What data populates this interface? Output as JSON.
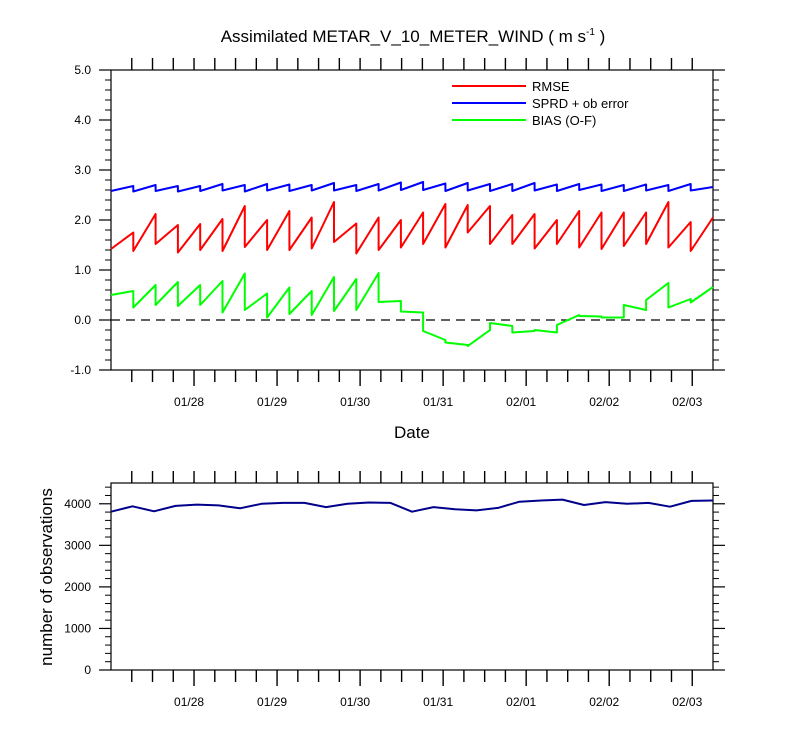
{
  "chart_data": [
    {
      "type": "line",
      "title": "Assimilated METAR_V_10_METER_WIND ( m s",
      "title_superscript": "-1",
      "title_suffix": " )",
      "xlabel": "Date",
      "ylabel": "",
      "ylim": [
        -1.0,
        5.0
      ],
      "yticks": [
        "5.0",
        "4.0",
        "3.0",
        "2.0",
        "1.0",
        "0.0",
        "-1.0"
      ],
      "ytick_values": [
        5.0,
        4.0,
        3.0,
        2.0,
        1.0,
        0.0,
        -1.0
      ],
      "xticks": [
        "01/28",
        "01/29",
        "01/30",
        "01/31",
        "02/01",
        "02/02",
        "02/03"
      ],
      "xtick_values": [
        1,
        2,
        3,
        4,
        5,
        6,
        7
      ],
      "xlim": [
        0,
        7.25
      ],
      "reference_line": 0.0,
      "legend_position": "top-right",
      "series": [
        {
          "name": "RMSE",
          "color": "#ff0000",
          "style": "sawtooth",
          "values": [
            1.42,
            1.75,
            1.38,
            2.12,
            1.52,
            1.9,
            1.35,
            1.92,
            1.4,
            2.02,
            1.38,
            2.28,
            1.46,
            2.0,
            1.4,
            2.18,
            1.4,
            2.05,
            1.43,
            2.36,
            1.56,
            1.93,
            1.33,
            2.05,
            1.4,
            2.0,
            1.45,
            2.15,
            1.52,
            2.32,
            1.45,
            2.3,
            1.75,
            2.28,
            1.52,
            2.1,
            1.52,
            2.12,
            1.43,
            2.0,
            1.52,
            2.18,
            1.45,
            2.15,
            1.42,
            2.15,
            1.48,
            2.15,
            1.52,
            2.36,
            1.45,
            1.96,
            1.38,
            2.05
          ]
        },
        {
          "name": "SPRD + ob error",
          "color": "#0000ff",
          "style": "sawtooth",
          "values": [
            2.58,
            2.68,
            2.57,
            2.7,
            2.58,
            2.68,
            2.57,
            2.68,
            2.58,
            2.72,
            2.59,
            2.7,
            2.57,
            2.72,
            2.59,
            2.71,
            2.58,
            2.7,
            2.59,
            2.74,
            2.59,
            2.7,
            2.58,
            2.72,
            2.59,
            2.75,
            2.6,
            2.76,
            2.6,
            2.73,
            2.58,
            2.74,
            2.59,
            2.72,
            2.58,
            2.72,
            2.58,
            2.74,
            2.59,
            2.71,
            2.58,
            2.72,
            2.6,
            2.71,
            2.58,
            2.7,
            2.58,
            2.71,
            2.59,
            2.7,
            2.58,
            2.72,
            2.59,
            2.66
          ]
        },
        {
          "name": "BIAS (O-F)",
          "color": "#00ff00",
          "style": "sawtooth",
          "values": [
            0.5,
            0.58,
            0.25,
            0.7,
            0.3,
            0.76,
            0.28,
            0.7,
            0.3,
            0.78,
            0.15,
            0.93,
            0.2,
            0.53,
            0.05,
            0.65,
            0.12,
            0.58,
            0.1,
            0.86,
            0.18,
            0.82,
            0.2,
            0.94,
            0.36,
            0.38,
            0.17,
            0.15,
            -0.22,
            -0.4,
            -0.45,
            -0.5,
            -0.52,
            -0.2,
            -0.06,
            -0.12,
            -0.25,
            -0.22,
            -0.2,
            -0.25,
            -0.1,
            0.1,
            0.08,
            0.07,
            0.05,
            0.05,
            0.3,
            0.2,
            0.4,
            0.74,
            0.25,
            0.42,
            0.35,
            0.66
          ]
        }
      ]
    },
    {
      "type": "line",
      "title": "",
      "xlabel": "",
      "ylabel": "number of observations",
      "ylim": [
        0,
        4500
      ],
      "yticks": [
        "4000",
        "3000",
        "2000",
        "1000",
        "0"
      ],
      "ytick_values": [
        4000,
        3000,
        2000,
        1000,
        0
      ],
      "xticks": [
        "01/28",
        "01/29",
        "01/30",
        "01/31",
        "02/01",
        "02/02",
        "02/03"
      ],
      "xtick_values": [
        1,
        2,
        3,
        4,
        5,
        6,
        7
      ],
      "xlim": [
        0,
        7.25
      ],
      "series": [
        {
          "name": "number of observations",
          "color": "#00008b",
          "values": [
            3810,
            3940,
            3820,
            3950,
            3980,
            3960,
            3890,
            4000,
            4020,
            4020,
            3920,
            4000,
            4030,
            4020,
            3810,
            3920,
            3870,
            3840,
            3900,
            4050,
            4080,
            4100,
            3970,
            4040,
            4000,
            4020,
            3930,
            4070,
            4080
          ]
        }
      ]
    }
  ]
}
